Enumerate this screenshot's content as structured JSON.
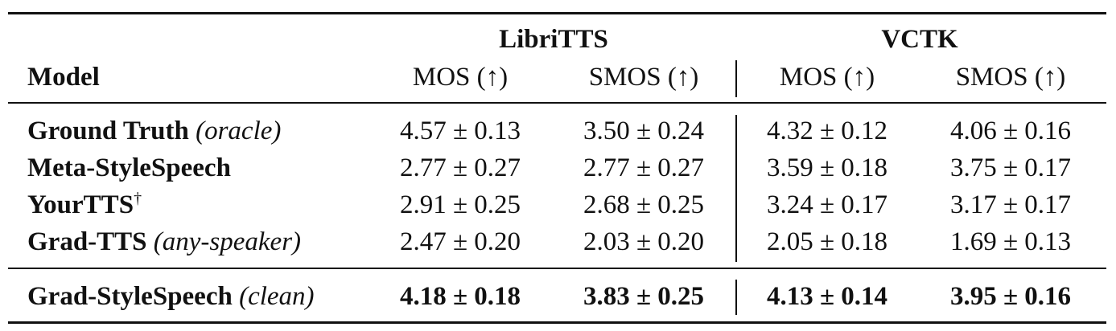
{
  "table": {
    "groups": [
      {
        "label": "LibriTTS"
      },
      {
        "label": "VCTK"
      }
    ],
    "headers": {
      "model": "Model",
      "columns": [
        "MOS (↑)",
        "SMOS (↑)",
        "MOS (↑)",
        "SMOS (↑)"
      ]
    },
    "rows": [
      {
        "model": "Ground Truth",
        "qualifier": "(oracle)",
        "mark": "",
        "values": [
          "4.57 ± 0.13",
          "3.50 ± 0.24",
          "4.32 ± 0.12",
          "4.06 ± 0.16"
        ]
      },
      {
        "model": "Meta-StyleSpeech",
        "qualifier": "",
        "mark": "",
        "values": [
          "2.77 ± 0.27",
          "2.77 ± 0.27",
          "3.59 ± 0.18",
          "3.75 ± 0.17"
        ]
      },
      {
        "model": "YourTTS",
        "qualifier": "",
        "mark": "†",
        "values": [
          "2.91 ± 0.25",
          "2.68 ± 0.25",
          "3.24 ± 0.17",
          "3.17 ± 0.17"
        ]
      },
      {
        "model": "Grad-TTS",
        "qualifier": "(any-speaker)",
        "mark": "",
        "values": [
          "2.47 ± 0.20",
          "2.03 ± 0.20",
          "2.05 ± 0.18",
          "1.69 ± 0.13"
        ]
      }
    ],
    "highlight_row": {
      "model": "Grad-StyleSpeech",
      "qualifier": "(clean)",
      "values": [
        "4.18 ± 0.18",
        "3.83 ± 0.25",
        "4.13 ± 0.14",
        "3.95 ± 0.16"
      ]
    }
  }
}
